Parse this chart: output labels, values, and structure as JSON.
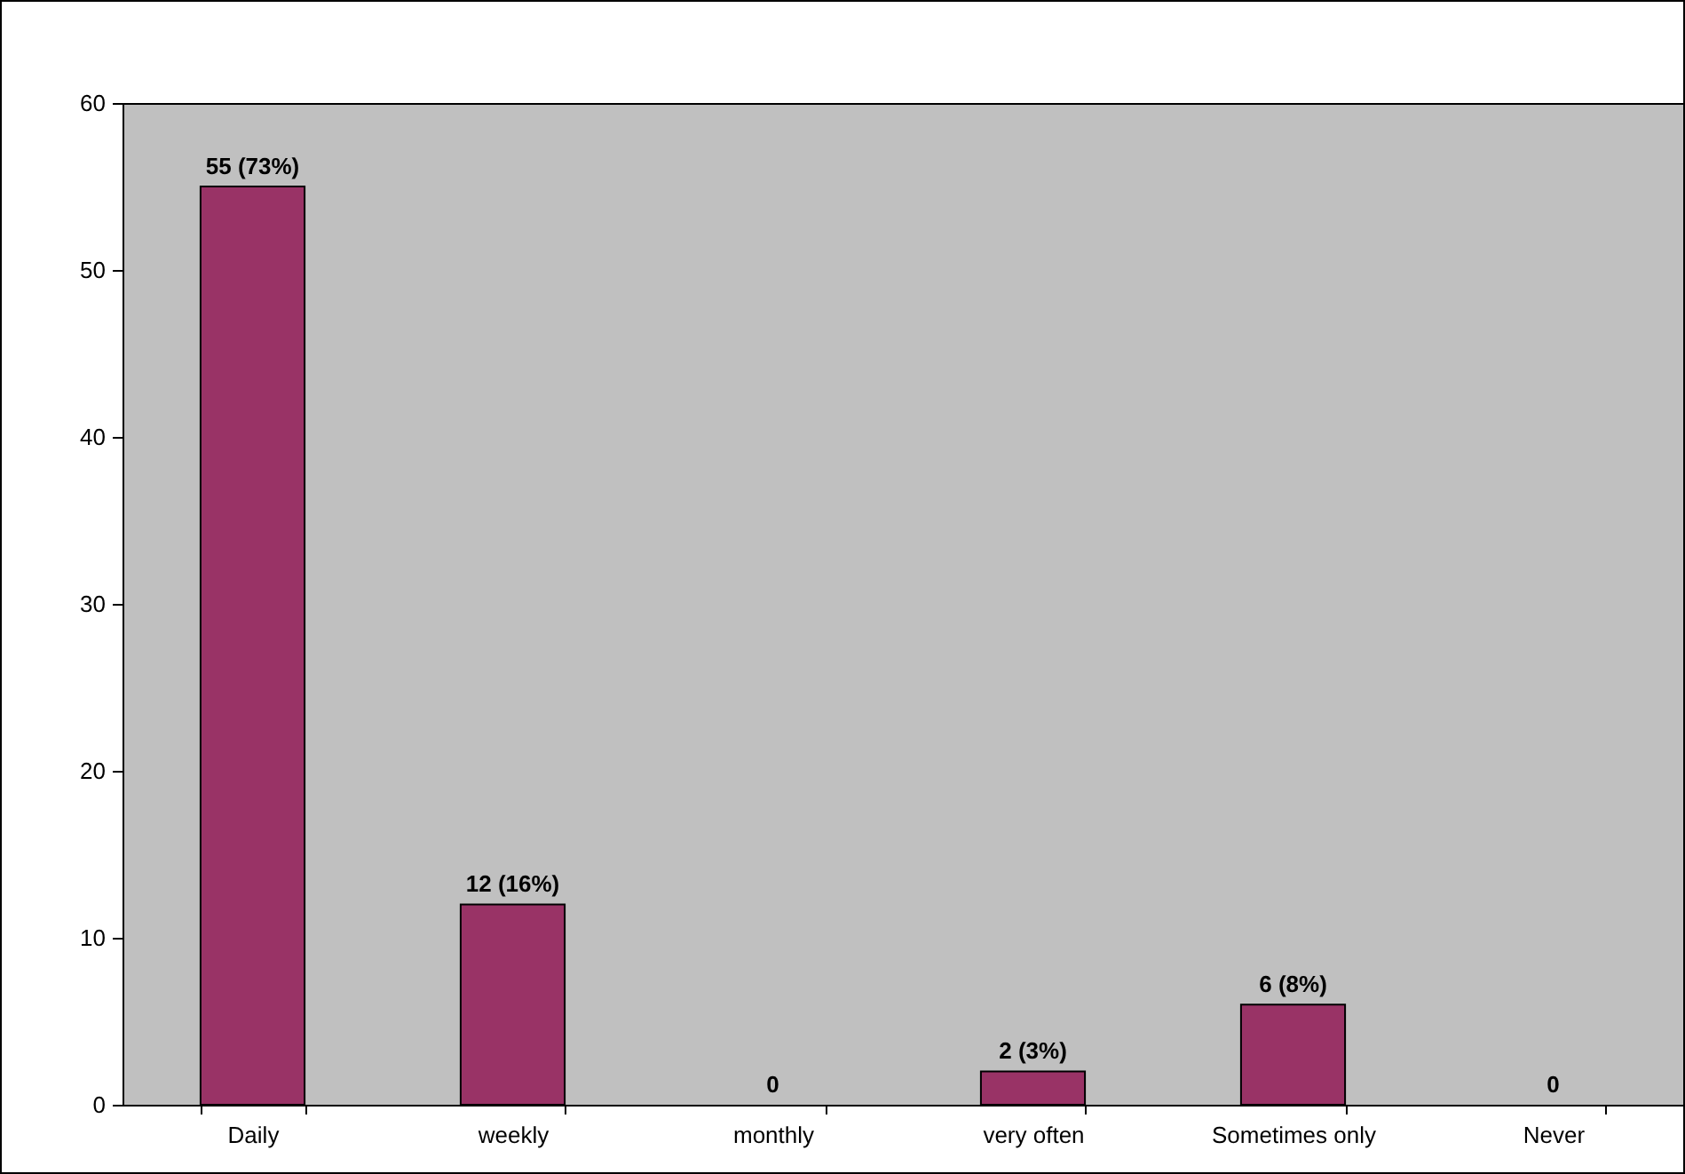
{
  "chart_data": {
    "type": "bar",
    "categories": [
      "Daily",
      "weekly",
      "monthly",
      "very often",
      "Sometimes only",
      "Never"
    ],
    "values": [
      55,
      12,
      0,
      2,
      6,
      0
    ],
    "value_labels": [
      "55 (73%)",
      "12 (16%)",
      "0",
      "2 (3%)",
      "6 (8%)",
      "0"
    ],
    "color": "#993366",
    "ylim": [
      0,
      60
    ],
    "yticks": [
      0,
      10,
      20,
      30,
      40,
      50,
      60
    ],
    "grid": false
  }
}
